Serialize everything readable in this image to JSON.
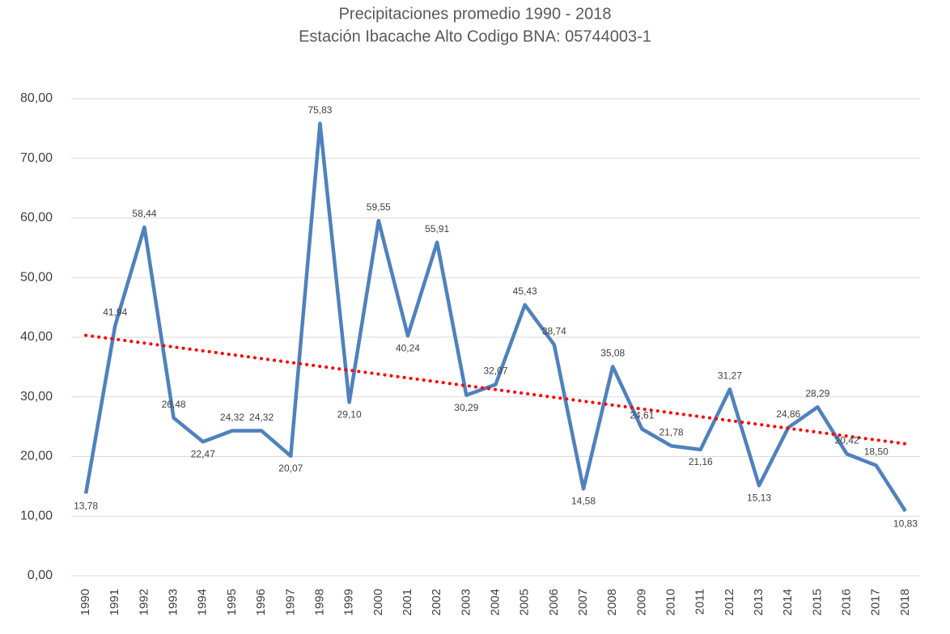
{
  "chart_data": {
    "type": "line",
    "title": [
      "Precipitaciones promedio 1990 - 2018",
      "Estación Ibacache Alto Codigo BNA: 05744003-1"
    ],
    "categories": [
      "1990",
      "1991",
      "1992",
      "1993",
      "1994",
      "1995",
      "1996",
      "1997",
      "1998",
      "1999",
      "2000",
      "2001",
      "2002",
      "2003",
      "2004",
      "2005",
      "2006",
      "2007",
      "2008",
      "2009",
      "2010",
      "2011",
      "2012",
      "2013",
      "2014",
      "2015",
      "2016",
      "2017",
      "2018"
    ],
    "values": [
      13.78,
      41.94,
      58.44,
      26.48,
      22.47,
      24.32,
      24.32,
      20.07,
      75.83,
      29.1,
      59.55,
      40.24,
      55.91,
      30.29,
      32.07,
      45.43,
      38.74,
      14.58,
      35.08,
      24.61,
      21.78,
      21.16,
      31.27,
      15.13,
      24.86,
      28.29,
      20.42,
      18.5,
      10.83
    ],
    "value_labels": [
      "13,78",
      "41,94",
      "58,44",
      "26,48",
      "22,47",
      "24,32",
      "24,32",
      "20,07",
      "75,83",
      "29,10",
      "59,55",
      "40,24",
      "55,91",
      "30,29",
      "32,07",
      "45,43",
      "38,74",
      "14,58",
      "35,08",
      "24,61",
      "21,78",
      "21,16",
      "31,27",
      "15,13",
      "24,86",
      "28,29",
      "20,42",
      "18,50",
      "10,83"
    ],
    "color": "#4f81bd",
    "trendline": {
      "type": "linear",
      "color": "#ff0000"
    },
    "ylim": [
      0,
      80
    ],
    "yticks": [
      {
        "value": 0,
        "label": "0,00"
      },
      {
        "value": 10,
        "label": "10,00"
      },
      {
        "value": 20,
        "label": "20,00"
      },
      {
        "value": 30,
        "label": "30,00"
      },
      {
        "value": 40,
        "label": "40,00"
      },
      {
        "value": 50,
        "label": "50,00"
      },
      {
        "value": 60,
        "label": "60,00"
      },
      {
        "value": 70,
        "label": "70,00"
      },
      {
        "value": 80,
        "label": "80,00"
      }
    ],
    "grid": true
  }
}
